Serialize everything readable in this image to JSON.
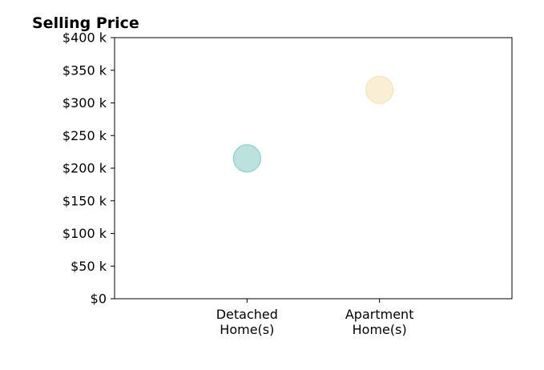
{
  "chart_data": {
    "type": "scatter",
    "title": "Selling Price",
    "xlabel": "",
    "ylabel": "",
    "categories": [
      [
        "Detached",
        "Home(s)"
      ],
      [
        "Apartment",
        "Home(s)"
      ]
    ],
    "x_range": [
      0,
      3
    ],
    "x_positions": [
      1,
      2
    ],
    "values": [
      215000,
      320000
    ],
    "ylim": [
      0,
      400000
    ],
    "y_ticks": [
      0,
      50000,
      100000,
      150000,
      200000,
      250000,
      300000,
      350000,
      400000
    ],
    "y_tick_labels": [
      "$0",
      "$50 k",
      "$100 k",
      "$150 k",
      "$200 k",
      "$250 k",
      "$300 k",
      "$350 k",
      "$400 k"
    ],
    "point_colors": [
      "#8dcfca",
      "#f7e2b8"
    ],
    "grid": false,
    "legend": "none"
  }
}
